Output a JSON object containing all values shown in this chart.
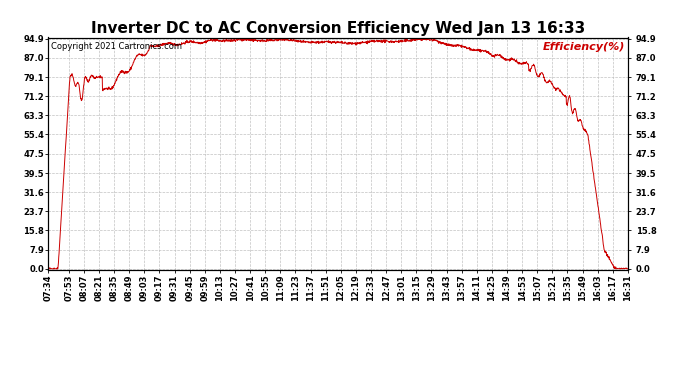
{
  "title": "Inverter DC to AC Conversion Efficiency Wed Jan 13 16:33",
  "copyright_text": "Copyright 2021 Cartronics.com",
  "legend_label": "Efficiency(%)",
  "yticks": [
    0.0,
    7.9,
    15.8,
    23.7,
    31.6,
    39.5,
    47.5,
    55.4,
    63.3,
    71.2,
    79.1,
    87.0,
    94.9
  ],
  "ymin": 0.0,
  "ymax": 94.9,
  "line_color": "#cc0000",
  "grid_color": "#bbbbbb",
  "background_color": "#ffffff",
  "title_fontsize": 11,
  "axis_fontsize": 6,
  "copyright_fontsize": 6,
  "legend_fontsize": 8,
  "xtick_labels": [
    "07:34",
    "07:53",
    "08:07",
    "08:21",
    "08:35",
    "08:49",
    "09:03",
    "09:17",
    "09:31",
    "09:45",
    "09:59",
    "10:13",
    "10:27",
    "10:41",
    "10:55",
    "11:09",
    "11:23",
    "11:37",
    "11:51",
    "12:05",
    "12:19",
    "12:33",
    "12:47",
    "13:01",
    "13:15",
    "13:29",
    "13:43",
    "13:57",
    "14:11",
    "14:25",
    "14:39",
    "14:53",
    "15:07",
    "15:21",
    "15:35",
    "15:49",
    "16:03",
    "16:17",
    "16:31"
  ]
}
